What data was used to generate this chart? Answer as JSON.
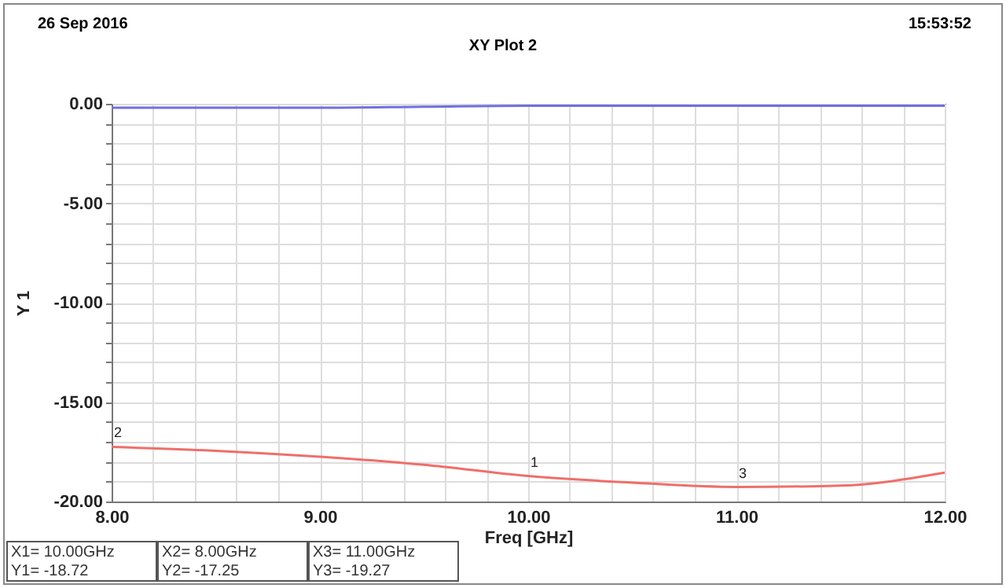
{
  "chart_data": {
    "type": "line",
    "title": "XY Plot 2",
    "xlabel": "Freq [GHz]",
    "ylabel": "Y 1",
    "x": [
      8,
      8.5,
      9,
      9.5,
      10,
      10.5,
      11,
      11.5,
      12
    ],
    "series": [
      {
        "color": "#7070e0",
        "values": [
          -0.2,
          -0.2,
          -0.2,
          -0.15,
          -0.1,
          -0.1,
          -0.1,
          -0.1,
          -0.1
        ]
      },
      {
        "color": "#ee6f6a",
        "values": [
          -17.25,
          -17.45,
          -17.75,
          -18.15,
          -18.72,
          -19.05,
          -19.27,
          -19.2,
          -18.55
        ]
      }
    ],
    "xlim": [
      8,
      12
    ],
    "ylim": [
      -20,
      0
    ],
    "xticks": [
      {
        "value": 8,
        "label": "8.00"
      },
      {
        "value": 8.2,
        "label": null
      },
      {
        "value": 8.4,
        "label": null
      },
      {
        "value": 8.6,
        "label": null
      },
      {
        "value": 8.8,
        "label": null
      },
      {
        "value": 9,
        "label": "9.00"
      },
      {
        "value": 9.2,
        "label": null
      },
      {
        "value": 9.4,
        "label": null
      },
      {
        "value": 9.6,
        "label": null
      },
      {
        "value": 9.8,
        "label": null
      },
      {
        "value": 10,
        "label": "10.00"
      },
      {
        "value": 10.2,
        "label": null
      },
      {
        "value": 10.4,
        "label": null
      },
      {
        "value": 10.6,
        "label": null
      },
      {
        "value": 10.8,
        "label": null
      },
      {
        "value": 11,
        "label": "11.00"
      },
      {
        "value": 11.2,
        "label": null
      },
      {
        "value": 11.4,
        "label": null
      },
      {
        "value": 11.6,
        "label": null
      },
      {
        "value": 11.8,
        "label": null
      },
      {
        "value": 12,
        "label": "12.00"
      }
    ],
    "yticks": [
      {
        "value": -20,
        "label": "-20.00"
      },
      {
        "value": -19,
        "label": null
      },
      {
        "value": -18,
        "label": null
      },
      {
        "value": -17,
        "label": null
      },
      {
        "value": -16,
        "label": null
      },
      {
        "value": -15,
        "label": "-15.00"
      },
      {
        "value": -14,
        "label": null
      },
      {
        "value": -13,
        "label": null
      },
      {
        "value": -12,
        "label": null
      },
      {
        "value": -11,
        "label": null
      },
      {
        "value": -10,
        "label": "-10.00"
      },
      {
        "value": -9,
        "label": null
      },
      {
        "value": -8,
        "label": null
      },
      {
        "value": -7,
        "label": null
      },
      {
        "value": -6,
        "label": null
      },
      {
        "value": -5,
        "label": "-5.00"
      },
      {
        "value": -4,
        "label": null
      },
      {
        "value": -3,
        "label": null
      },
      {
        "value": -2,
        "label": null
      },
      {
        "value": -1,
        "label": null
      },
      {
        "value": 0,
        "label": "0.00"
      }
    ],
    "grid": true,
    "marker": "none",
    "line_style": "solid",
    "annotations": [
      "26 Sep 2016",
      "15:53:52",
      "X1= 10.00GHz",
      "Y1= -18.72",
      "X2= 8.00GHz",
      "Y2= -17.25",
      "X3= 11.00GHz",
      "Y3= -19.27",
      {
        "text": "1",
        "x": 10,
        "y": -18.72
      },
      {
        "text": "2",
        "x": 8,
        "y": -17.25
      },
      {
        "text": "3",
        "x": 11,
        "y": -19.27
      }
    ]
  }
}
